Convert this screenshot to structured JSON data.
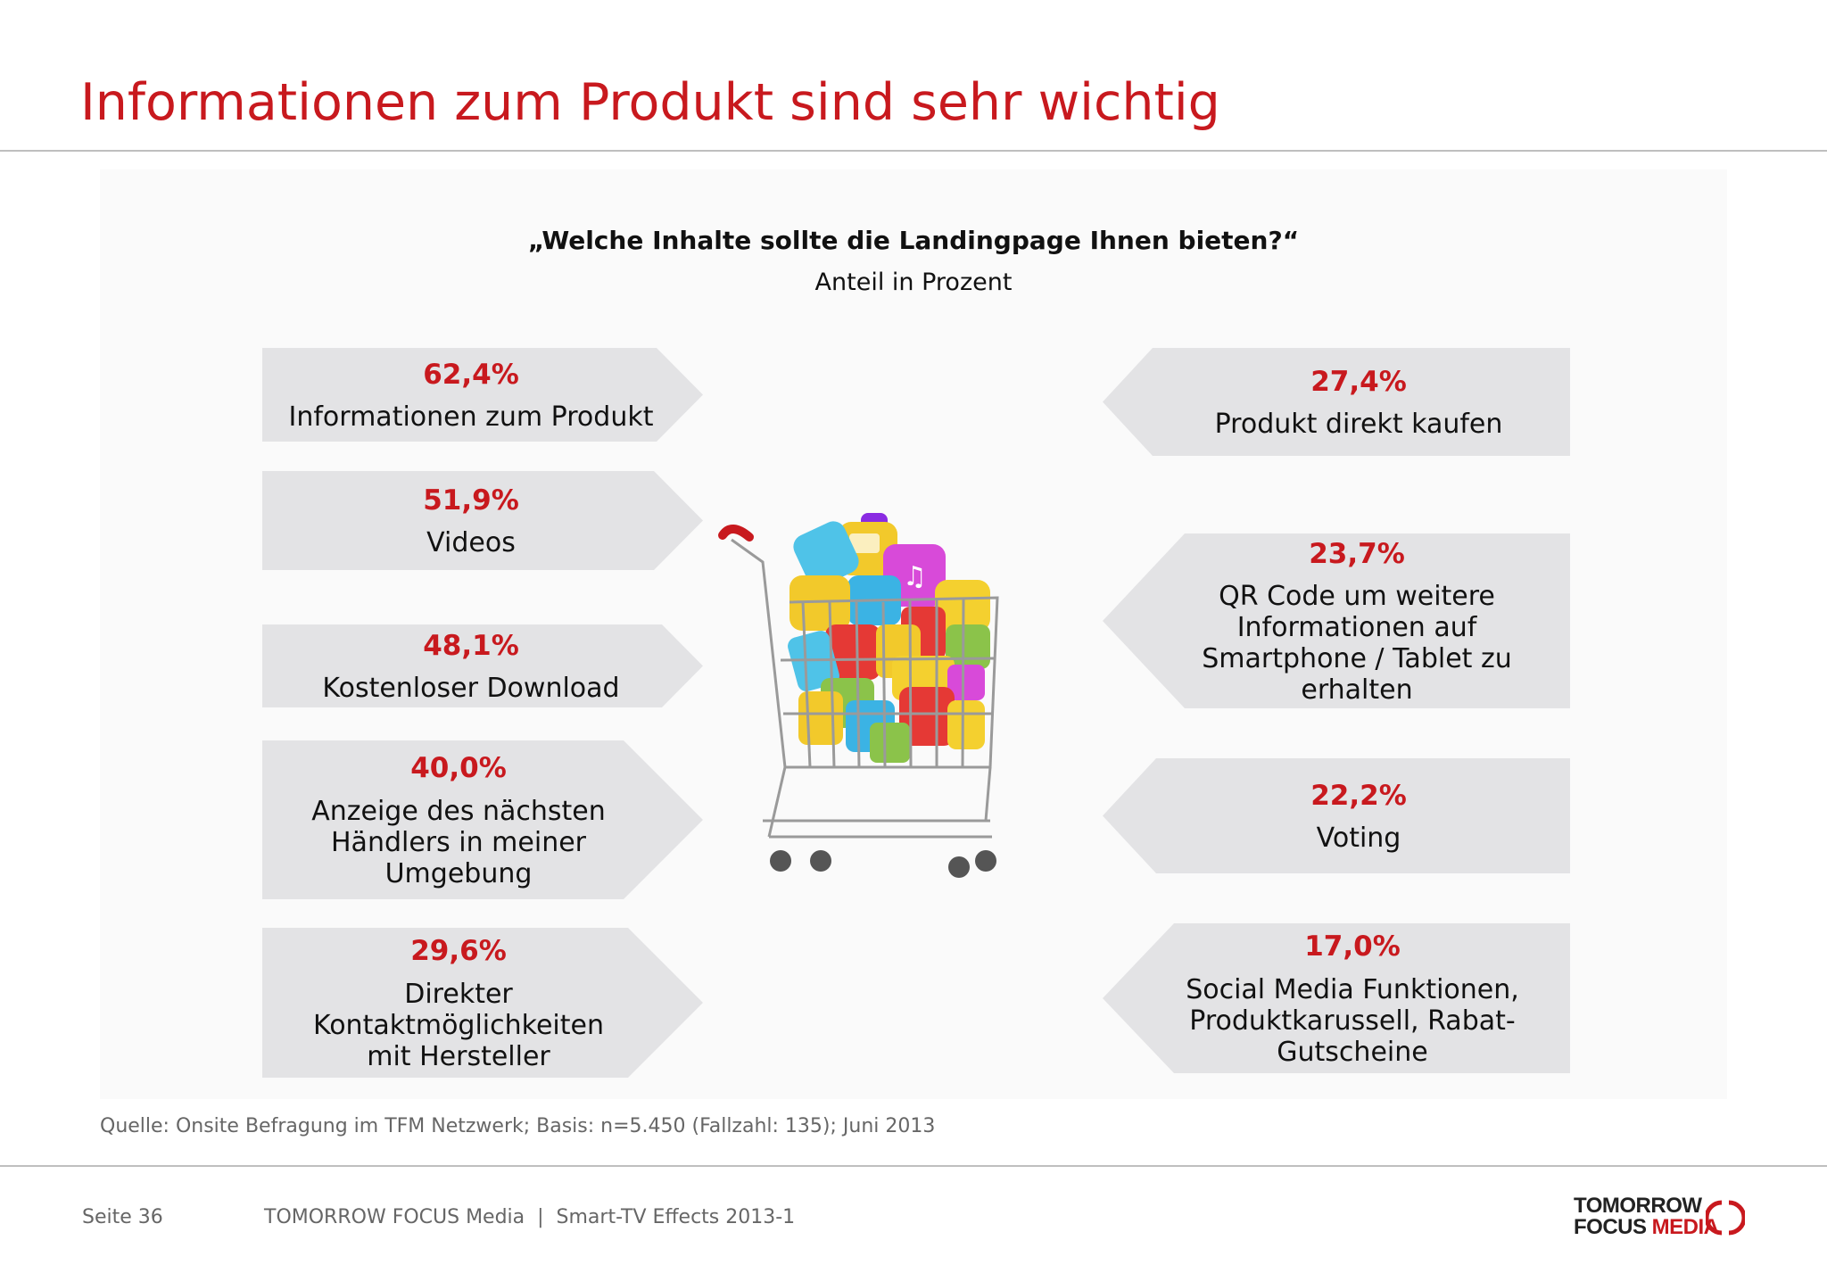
{
  "header": {
    "title": "Informationen zum Produkt sind sehr wichtig"
  },
  "chart": {
    "question": "„Welche Inhalte sollte die Landingpage Ihnen bieten?“",
    "subtitle": "Anteil in Prozent",
    "left_items": [
      {
        "value": "62,4%",
        "label": "Informationen zum Produkt"
      },
      {
        "value": "51,9%",
        "label": "Videos"
      },
      {
        "value": "48,1%",
        "label": "Kostenloser Download"
      },
      {
        "value": "40,0%",
        "label": "Anzeige des nächsten Händlers in meiner Umgebung"
      },
      {
        "value": "29,6%",
        "label": "Direkter Kontaktmöglichkeiten mit Hersteller"
      }
    ],
    "right_items": [
      {
        "value": "27,4%",
        "label": "Produkt direkt kaufen"
      },
      {
        "value": "23,7%",
        "label": "QR Code um weitere Informationen auf Smartphone / Tablet zu erhalten"
      },
      {
        "value": "22,2%",
        "label": "Voting"
      },
      {
        "value": "17,0%",
        "label": "Social Media Funktionen, Produktkarussell, Rabat-Gutscheine"
      }
    ]
  },
  "chart_data": {
    "type": "table",
    "title": "„Welche Inhalte sollte die Landingpage Ihnen bieten?“",
    "subtitle": "Anteil in Prozent",
    "categories": [
      "Informationen zum Produkt",
      "Videos",
      "Kostenloser Download",
      "Anzeige des nächsten Händlers in meiner Umgebung",
      "Direkter Kontaktmöglichkeiten mit Hersteller",
      "Produkt direkt kaufen",
      "QR Code um weitere Informationen auf Smartphone / Tablet zu erhalten",
      "Voting",
      "Social Media Funktionen, Produktkarussell, Rabat-Gutscheine"
    ],
    "values": [
      62.4,
      51.9,
      48.1,
      40.0,
      29.6,
      27.4,
      23.7,
      22.2,
      17.0
    ]
  },
  "source": "Quelle: Onsite Befragung im TFM Netzwerk; Basis: n=5.450 (Fallzahl: 135); Juni 2013",
  "footer": {
    "page": "Seite 36",
    "company": "TOMORROW FOCUS Media  |  Smart-TV Effects 2013-1"
  },
  "logo": {
    "line1": "TOMORROW",
    "line2a": "FOCUS ",
    "line2b": "MEDIA"
  },
  "colors": {
    "accent": "#c8191e",
    "box": "#e3e3e5",
    "text": "#111111",
    "muted": "#666666"
  }
}
